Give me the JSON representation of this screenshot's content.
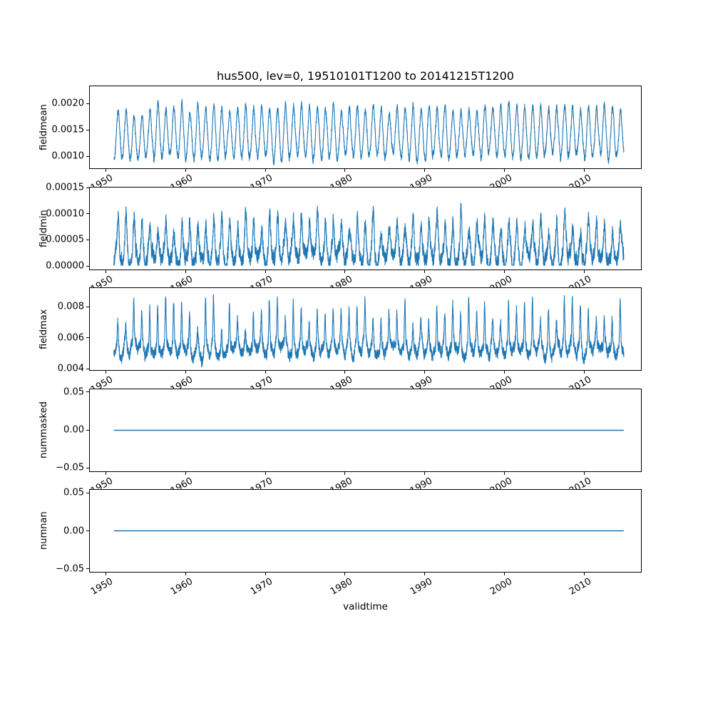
{
  "title": "hus500, lev=0, 19510101T1200 to 20141215T1200",
  "xlabel": "validtime",
  "line_color": "#1f77b4",
  "text_color": "#000000",
  "background_color": "#ffffff",
  "axis": {
    "xlim": [
      1947.9,
      2017.2
    ],
    "x_ticks": [
      1950,
      1960,
      1970,
      1980,
      1990,
      2000,
      2010
    ],
    "x_tick_labels": [
      "1950",
      "1960",
      "1970",
      "1980",
      "1990",
      "2000",
      "2010"
    ],
    "x_tick_rotation_deg": 30,
    "x_data_start": 1951.0,
    "x_data_end": 2014.96,
    "grid": false,
    "legend": false
  },
  "chart_data": [
    {
      "type": "line",
      "name": "fieldmean",
      "ylabel": "fieldmean",
      "y_ticks": [
        0.001,
        0.0015,
        0.002
      ],
      "y_tick_labels": [
        "0.0010",
        "0.0015",
        "0.0020"
      ],
      "ylim": [
        0.000757,
        0.00234
      ],
      "series_profile": {
        "kind": "seasonal-annual",
        "approx_mean": 0.00135,
        "approx_min": 0.00082,
        "approx_max": 0.00225,
        "base": 0.001365,
        "trend_per_year": 6.3e-07,
        "amp": 0.00039,
        "amp_var": 7e-05,
        "sharp": 0.00021,
        "sharp_exp": 3,
        "noise_walk": 3.5e-05,
        "noise_white": 5e-05,
        "phase": 0.54,
        "floor": null
      }
    },
    {
      "type": "line",
      "name": "fieldmin",
      "ylabel": "fieldmin",
      "y_ticks": [
        0.0,
        5e-05,
        0.0001,
        0.00015
      ],
      "y_tick_labels": [
        "0.00000",
        "0.00005",
        "0.00010",
        "0.00015"
      ],
      "ylim": [
        -7.4e-06,
        0.0001523
      ],
      "series_profile": {
        "kind": "seasonal-annual",
        "approx_mean": 3e-05,
        "approx_min": 2e-06,
        "approx_max": 0.00014,
        "base": 2.9e-05,
        "trend_per_year": 0,
        "amp": 2.1e-05,
        "amp_var": 7e-06,
        "sharp": 5e-05,
        "sharp_exp": 3,
        "noise_walk": 8e-06,
        "noise_white": 1.2e-05,
        "phase": 0.54,
        "floor": 2e-06
      }
    },
    {
      "type": "line",
      "name": "fieldmax",
      "ylabel": "fieldmax",
      "y_ticks": [
        0.004,
        0.006,
        0.008
      ],
      "y_tick_labels": [
        "0.004",
        "0.006",
        "0.008"
      ],
      "ylim": [
        0.00387,
        0.00925
      ],
      "series_profile": {
        "kind": "seasonal-annual",
        "approx_mean": 0.0054,
        "approx_min": 0.0044,
        "approx_max": 0.0091,
        "base": 0.00535,
        "trend_per_year": 0,
        "amp": 0.0004,
        "amp_var": 0.00012,
        "sharp": 0.0028,
        "sharp_exp": 7,
        "noise_walk": 0.00018,
        "noise_white": 0.0003,
        "phase": 0.5,
        "floor": null
      }
    },
    {
      "type": "line",
      "name": "nummasked",
      "ylabel": "nummasked",
      "y_ticks": [
        -0.05,
        0.0,
        0.05
      ],
      "y_tick_labels": [
        "−0.05",
        "0.00",
        "0.05"
      ],
      "ylim": [
        -0.055,
        0.055
      ],
      "series_profile": {
        "kind": "constant",
        "constant_value": 0
      }
    },
    {
      "type": "line",
      "name": "numnan",
      "ylabel": "numnan",
      "y_ticks": [
        -0.05,
        0.0,
        0.05
      ],
      "y_tick_labels": [
        "−0.05",
        "0.00",
        "0.05"
      ],
      "ylim": [
        -0.055,
        0.055
      ],
      "series_profile": {
        "kind": "constant",
        "constant_value": 0
      }
    }
  ]
}
